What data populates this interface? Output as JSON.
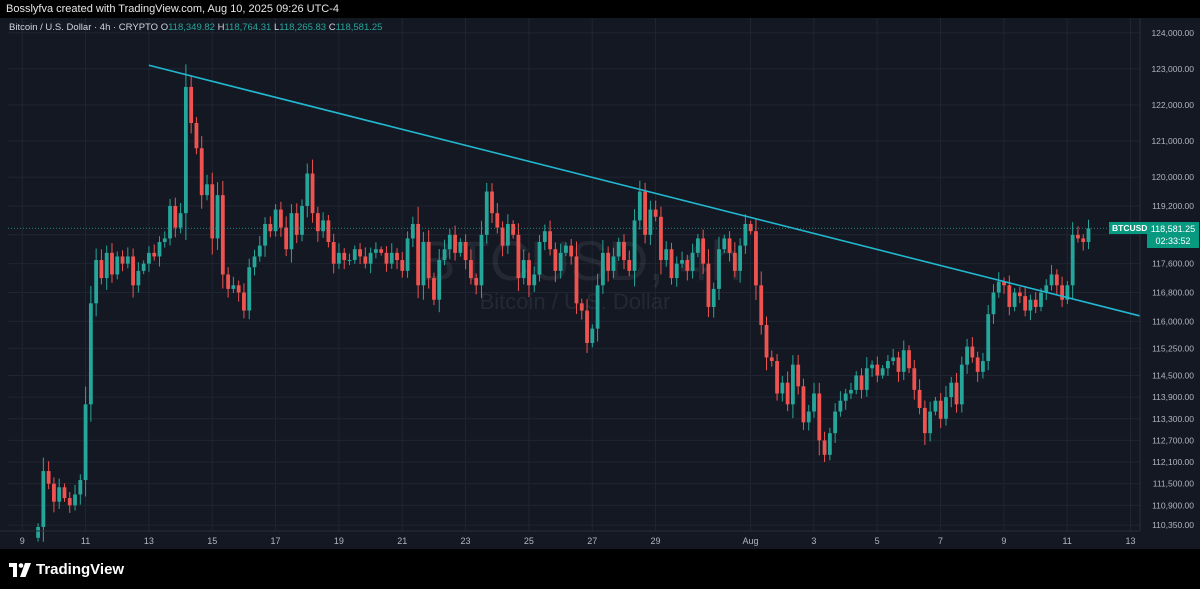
{
  "header": {
    "caption": "Bosslyfva created with TradingView.com, Aug 10, 2025 09:26 UTC-4"
  },
  "legend": {
    "symbol_line": "Bitcoin / U.S. Dollar · 4h · CRYPTO",
    "o_label": "O",
    "o_value": "118,349.82",
    "h_label": "H",
    "h_value": "118,764.31",
    "l_label": "L",
    "l_value": "118,265.83",
    "c_label": "C",
    "c_value": "118,581.25"
  },
  "watermark": {
    "title": "BTCUSD, 4h",
    "subtitle": "Bitcoin / U.S. Dollar"
  },
  "price_tag": {
    "ticker": "BTCUSD",
    "price": "118,581.25",
    "countdown": "02:33:52"
  },
  "footer": {
    "brand": "TradingView"
  },
  "colors": {
    "up": "#26a69a",
    "down": "#ef5350",
    "trendline": "#22b8cf",
    "grid": "#1f2533"
  },
  "chart_data": {
    "type": "candlestick",
    "symbol": "BTCUSD",
    "interval": "4h",
    "ylim": [
      109800,
      124300
    ],
    "y_ticks": [
      {
        "value": 124000,
        "label": "124,000.00"
      },
      {
        "value": 123000,
        "label": "123,000.00"
      },
      {
        "value": 122000,
        "label": "122,000.00"
      },
      {
        "value": 121000,
        "label": "121,000.00"
      },
      {
        "value": 120000,
        "label": "120,000.00"
      },
      {
        "value": 119200,
        "label": "119,200.00"
      },
      {
        "value": 118400,
        "label": "118,400.00"
      },
      {
        "value": 117600,
        "label": "117,600.00"
      },
      {
        "value": 116800,
        "label": "116,800.00"
      },
      {
        "value": 116000,
        "label": "116,000.00"
      },
      {
        "value": 115250,
        "label": "115,250.00"
      },
      {
        "value": 114500,
        "label": "114,500.00"
      },
      {
        "value": 113900,
        "label": "113,900.00"
      },
      {
        "value": 113300,
        "label": "113,300.00"
      },
      {
        "value": 112700,
        "label": "112,700.00"
      },
      {
        "value": 112100,
        "label": "112,100.00"
      },
      {
        "value": 111500,
        "label": "111,500.00"
      },
      {
        "value": 110900,
        "label": "110,900.00"
      },
      {
        "value": 110350,
        "label": "110,350.00"
      }
    ],
    "x_ticks": [
      "9",
      "11",
      "13",
      "15",
      "17",
      "19",
      "21",
      "23",
      "25",
      "27",
      "29",
      "Aug",
      "3",
      "5",
      "7",
      "9",
      "11",
      "13"
    ],
    "x_tick_days": [
      9,
      11,
      13,
      15,
      17,
      19,
      21,
      23,
      25,
      27,
      29,
      32,
      34,
      36,
      38,
      40,
      42,
      44
    ],
    "x_range_days": [
      8.55,
      44.3
    ],
    "candle_days_start": 9.5,
    "candle_days_step": 0.1667,
    "last_price": 118581.25,
    "trendline": {
      "x1": 13.0,
      "y1": 123100,
      "x2": 44.3,
      "y2": 116150
    },
    "closes": [
      110300,
      111850,
      111500,
      111000,
      111400,
      111100,
      110900,
      111200,
      111600,
      113700,
      116500,
      117700,
      117200,
      117900,
      117300,
      117800,
      117600,
      117800,
      117000,
      117400,
      117600,
      117900,
      117800,
      118200,
      118300,
      119200,
      118600,
      119000,
      122500,
      121500,
      120800,
      119500,
      119800,
      118300,
      119500,
      117300,
      116900,
      117000,
      116800,
      116300,
      117500,
      117800,
      118100,
      118700,
      118500,
      119100,
      118600,
      118000,
      119000,
      118400,
      119200,
      120100,
      119000,
      118500,
      118800,
      118200,
      117600,
      117900,
      117700,
      117700,
      118000,
      117800,
      117600,
      117900,
      118000,
      117900,
      117600,
      117900,
      117700,
      117400,
      118300,
      118700,
      117000,
      118200,
      117200,
      116600,
      117700,
      118000,
      118400,
      117900,
      118200,
      117700,
      117200,
      117000,
      118400,
      119600,
      119000,
      118600,
      118100,
      118700,
      118400,
      117200,
      117700,
      117000,
      117300,
      118200,
      118500,
      118000,
      117400,
      117900,
      118100,
      117800,
      116500,
      116300,
      115400,
      115800,
      117000,
      117900,
      117400,
      117800,
      118200,
      117700,
      117400,
      118800,
      119600,
      118400,
      119100,
      118900,
      117700,
      118000,
      117200,
      117600,
      117700,
      117400,
      117900,
      118300,
      117600,
      116400,
      116900,
      118000,
      118300,
      117900,
      117400,
      118100,
      118700,
      118500,
      117000,
      115900,
      115000,
      114900,
      114000,
      114300,
      113700,
      114800,
      114200,
      113200,
      113500,
      114000,
      112700,
      112300,
      112900,
      113500,
      113800,
      114000,
      114100,
      114500,
      114100,
      114700,
      114800,
      114500,
      114700,
      114900,
      115000,
      114600,
      115200,
      114700,
      114100,
      113600,
      112900,
      113500,
      113800,
      113300,
      113900,
      114300,
      113700,
      114800,
      115300,
      115000,
      114600,
      114900,
      116200,
      116800,
      117100,
      117000,
      116400,
      116800,
      116700,
      116300,
      116600,
      116400,
      116800,
      117000,
      117300,
      117000,
      116600,
      117000,
      118400,
      118300,
      118200,
      118581.25
    ]
  }
}
